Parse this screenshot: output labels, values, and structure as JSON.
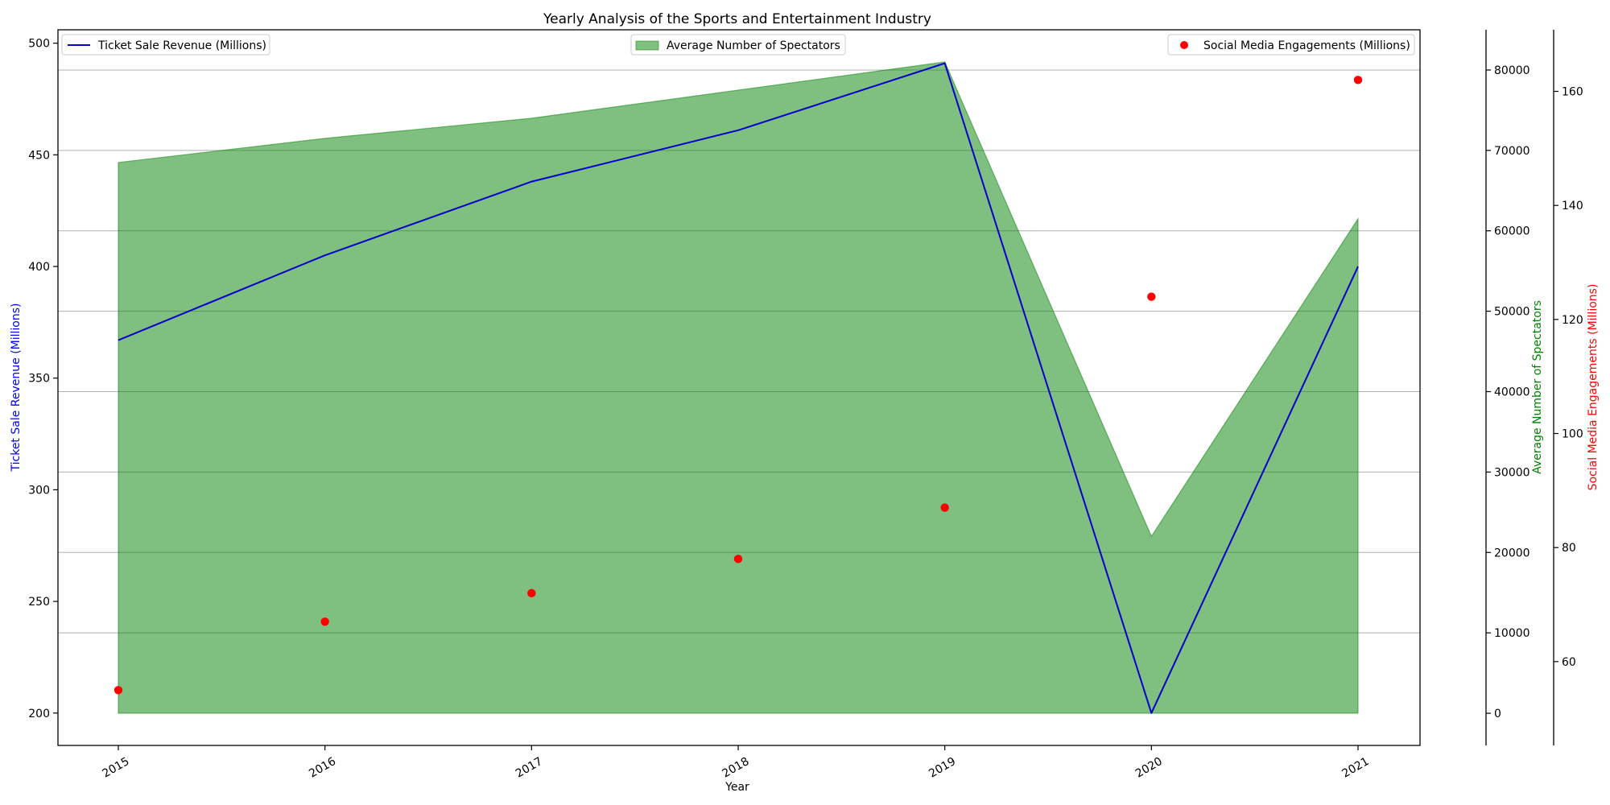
{
  "chart_data": {
    "type": "line",
    "title": "Yearly Analysis of the Sports and Entertainment Industry",
    "xlabel": "Year",
    "x": [
      "2015",
      "2016",
      "2017",
      "2018",
      "2019",
      "2020",
      "2021"
    ],
    "series": [
      {
        "name": "Ticket Sale Revenue (Millions)",
        "type": "line",
        "axis": "left",
        "color": "#0000cc",
        "values": [
          367,
          405,
          438,
          461,
          491,
          200,
          400
        ]
      },
      {
        "name": "Average Number of Spectators",
        "type": "area",
        "axis": "right1",
        "color": "#008000",
        "values": [
          68500,
          71500,
          74000,
          77500,
          81000,
          22000,
          61500
        ]
      },
      {
        "name": "Social Media Engagements (Millions)",
        "type": "scatter",
        "axis": "right2",
        "color": "#ff0000",
        "values": [
          55,
          67,
          72,
          78,
          87,
          124,
          162
        ]
      }
    ],
    "axes": {
      "left": {
        "label": "Ticket Sale Revenue (Millions)",
        "color": "#0000ff",
        "range": [
          185.5,
          506
        ],
        "ticks": [
          200,
          250,
          300,
          350,
          400,
          450,
          500
        ]
      },
      "right1": {
        "label": "Average Number of Spectators",
        "color": "#008000",
        "range": [
          -4000,
          85000
        ],
        "ticks": [
          0,
          10000,
          20000,
          30000,
          40000,
          50000,
          60000,
          70000,
          80000
        ]
      },
      "right2": {
        "label": "Social Media Engagements (Millions)",
        "color": "#ff0000",
        "range": [
          45.3,
          170.8
        ],
        "ticks": [
          60,
          80,
          100,
          120,
          140,
          160
        ]
      }
    },
    "grid": "horizontal",
    "legend": [
      "upper left",
      "upper center",
      "upper right"
    ]
  }
}
